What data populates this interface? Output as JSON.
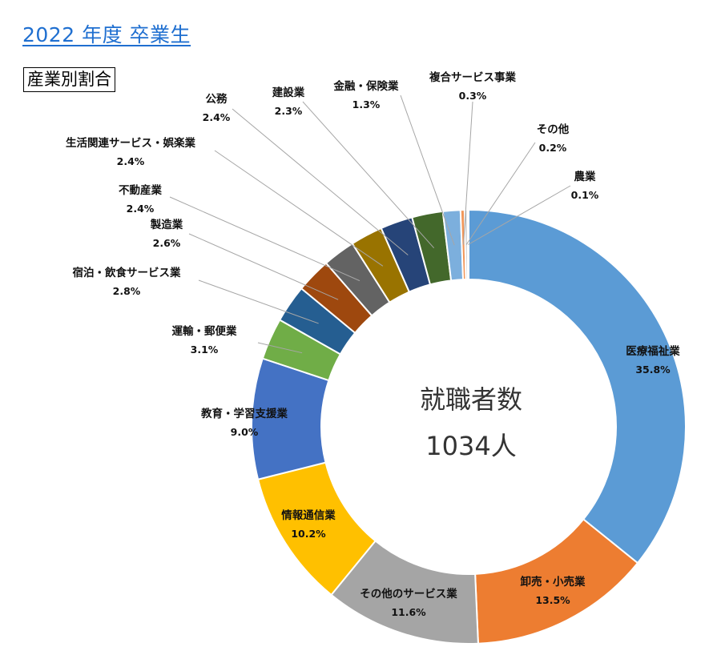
{
  "header": {
    "title": "2022 年度  卒業生",
    "section_label": "産業別割合"
  },
  "center": {
    "line1": "就職者数",
    "line2": "1034人"
  },
  "chart_data": {
    "type": "pie",
    "donut": true,
    "title": "",
    "center_text": [
      "就職者数",
      "1034人"
    ],
    "slices": [
      {
        "label": "医療福祉業",
        "value": 35.8,
        "pct_label": "35.8%",
        "color": "#5b9bd5"
      },
      {
        "label": "卸売・小売業",
        "value": 13.5,
        "pct_label": "13.5%",
        "color": "#ed7d31"
      },
      {
        "label": "その他のサービス業",
        "value": 11.6,
        "pct_label": "11.6%",
        "color": "#a5a5a5"
      },
      {
        "label": "情報通信業",
        "value": 10.2,
        "pct_label": "10.2%",
        "color": "#ffc000"
      },
      {
        "label": "教育・学習支援業",
        "value": 9.0,
        "pct_label": "9.0%",
        "color": "#4472c4"
      },
      {
        "label": "運輸・郵便業",
        "value": 3.1,
        "pct_label": "3.1%",
        "color": "#70ad47"
      },
      {
        "label": "宿泊・飲食サービス業",
        "value": 2.8,
        "pct_label": "2.8%",
        "color": "#255e91"
      },
      {
        "label": "製造業",
        "value": 2.6,
        "pct_label": "2.6%",
        "color": "#9e480e"
      },
      {
        "label": "不動産業",
        "value": 2.4,
        "pct_label": "2.4%",
        "color": "#636363"
      },
      {
        "label": "生活関連サービス・娯楽業",
        "value": 2.4,
        "pct_label": "2.4%",
        "color": "#997300"
      },
      {
        "label": "公務",
        "value": 2.4,
        "pct_label": "2.4%",
        "color": "#264478"
      },
      {
        "label": "建設業",
        "value": 2.3,
        "pct_label": "2.3%",
        "color": "#43682b"
      },
      {
        "label": "金融・保険業",
        "value": 1.3,
        "pct_label": "1.3%",
        "color": "#7cafdd"
      },
      {
        "label": "複合サービス事業",
        "value": 0.3,
        "pct_label": "0.3%",
        "color": "#f1975a"
      },
      {
        "label": "その他",
        "value": 0.2,
        "pct_label": "0.2%",
        "color": "#b7b7b7"
      },
      {
        "label": "農業",
        "value": 0.1,
        "pct_label": "0.1%",
        "color": "#ffcd33"
      }
    ]
  }
}
